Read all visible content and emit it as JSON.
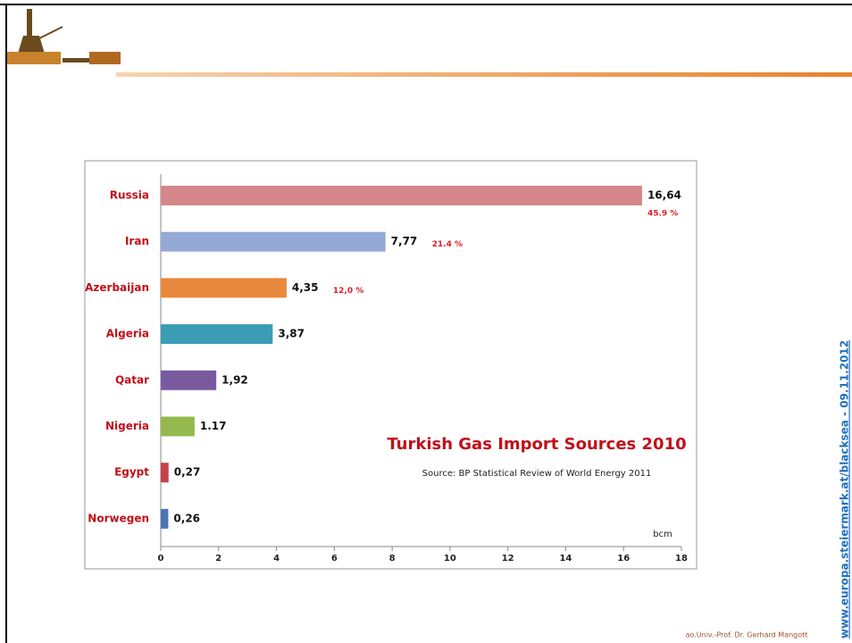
{
  "footer": "ao.Univ.-Prof. Dr. Gerhard Mangott",
  "side_link": "www.europa.steiermark.at/blacksea - 09.11.2012",
  "chart_data": {
    "type": "bar",
    "orientation": "horizontal",
    "title": "Turkish Gas Import Sources 2010",
    "subtitle": "Source: BP Statistical Review of World Energy 2011",
    "x_label": "bcm",
    "categories": [
      "Russia",
      "Iran",
      "Azerbaijan",
      "Algeria",
      "Qatar",
      "Nigeria",
      "Egypt",
      "Norwegen"
    ],
    "values": [
      16.64,
      7.77,
      4.35,
      3.87,
      1.92,
      1.17,
      0.27,
      0.26
    ],
    "value_labels": [
      "16,64",
      "7,77",
      "4,35",
      "3,87",
      "1,92",
      "1.17",
      "0,27",
      "0,26"
    ],
    "share_labels": [
      "45.9 %",
      "21.4 %",
      "12,0 %",
      null,
      null,
      null,
      null,
      null
    ],
    "colors": [
      "#d4868b",
      "#95a9d6",
      "#e8893e",
      "#3a9db5",
      "#7a5a9f",
      "#95b94e",
      "#c6414b",
      "#4a76b3"
    ],
    "xlim": [
      0,
      18
    ],
    "xticks": [
      0,
      2,
      4,
      6,
      8,
      10,
      12,
      14,
      16,
      18
    ]
  }
}
